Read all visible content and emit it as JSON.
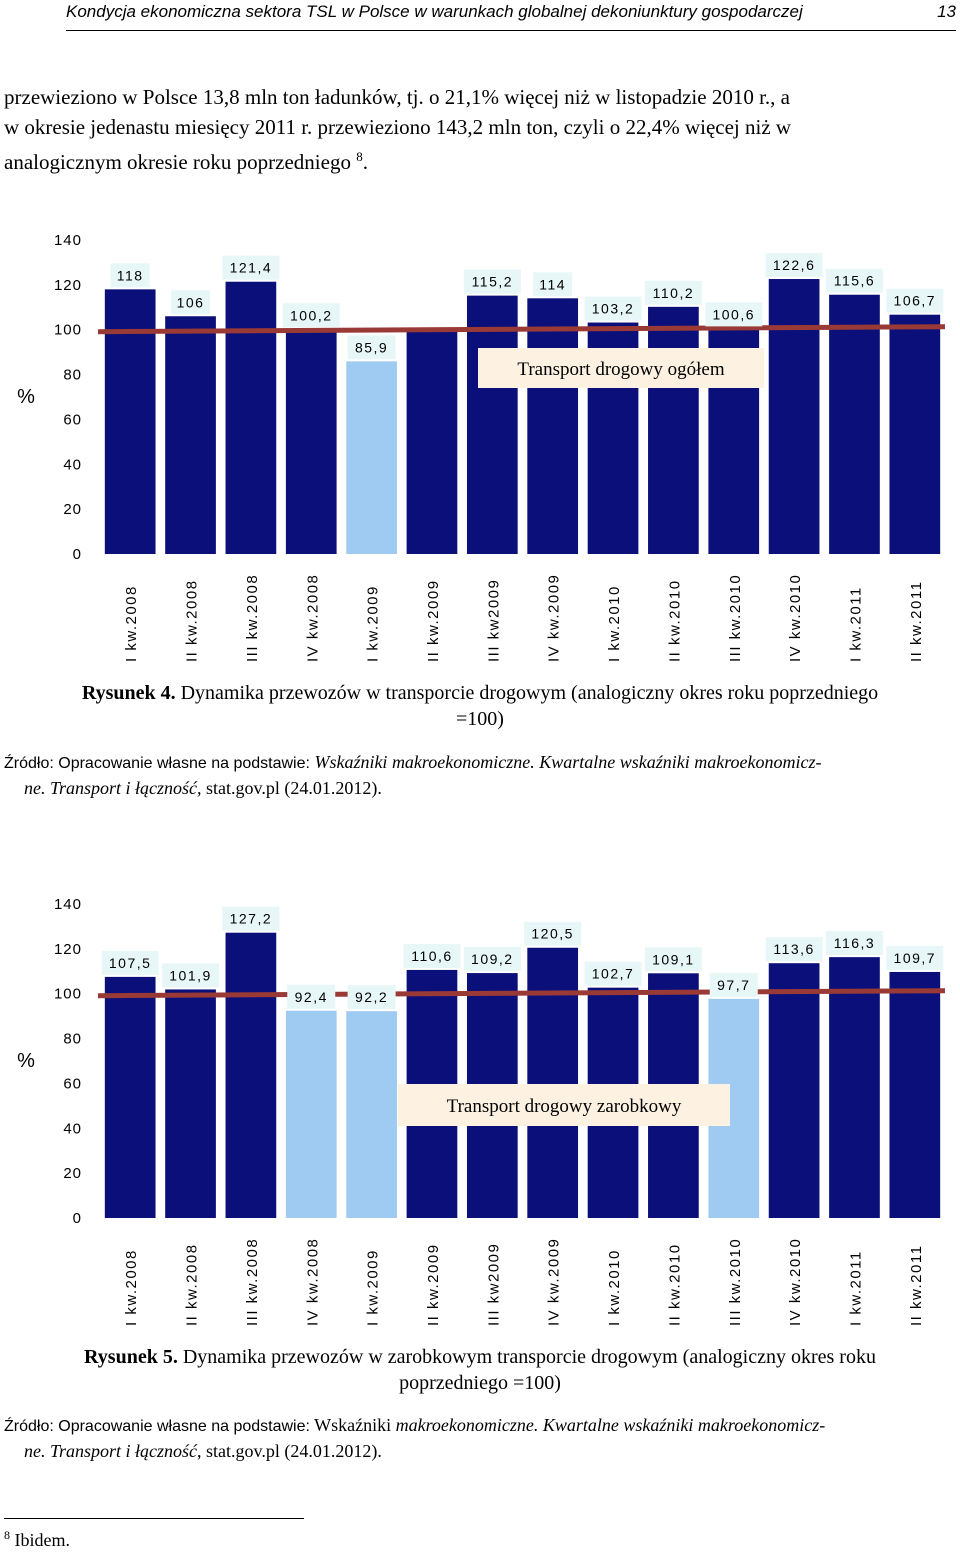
{
  "header": {
    "title": "Kondycja ekonomiczna sektora TSL w Polsce w warunkach globalnej dekoniunktury gospodarczej",
    "page_number": "13"
  },
  "intro": {
    "line1": "przewieziono w Polsce 13,8 mln ton ładunków, tj. o 21,1% więcej niż w listopadzie 2010 r., a",
    "line2": "w okresie jedenastu miesięcy 2011 r. przewieziono 143,2 mln ton, czyli o 22,4% więcej niż w",
    "line3": "analogicznym okresie roku poprzedniego",
    "footnote_ref": "8",
    "line3_end": "."
  },
  "colors": {
    "bar_dark": "#0a0f7a",
    "bar_light": "#9fcaf2",
    "label_bg": "#e7f7f7",
    "reference_line": "#9a3a36",
    "inset_bg": "#fdf2e1"
  },
  "chart_data": [
    {
      "type": "bar",
      "categories": [
        "I kw.2008",
        "II kw.2008",
        "III kw.2008",
        "IV kw.2008",
        "I kw.2009",
        "II kw.2009",
        "III kw2009",
        "IV kw.2009",
        "I kw.2010",
        "II kw.2010",
        "III kw.2010",
        "IV kw.2010",
        "I kw.2011",
        "II kw.2011"
      ],
      "values": [
        118,
        106,
        121.4,
        100.2,
        85.9,
        99.5,
        115.2,
        114,
        103.2,
        110.2,
        100.6,
        122.6,
        115.6,
        106.7
      ],
      "value_labels": [
        "118",
        "106",
        "121,4",
        "100,2",
        "85,9",
        "",
        "115,2",
        "114",
        "103,2",
        "110,2",
        "100,6",
        "122,6",
        "115,6",
        "106,7"
      ],
      "highlight": [
        false,
        false,
        false,
        false,
        true,
        false,
        false,
        false,
        false,
        false,
        false,
        false,
        false,
        false
      ],
      "reference_line": 100,
      "inset_label": "Transport drogowy ogółem",
      "ylabel": "%",
      "ylim": [
        0,
        140
      ],
      "yticks": [
        "0",
        "20",
        "40",
        "60",
        "80",
        "100",
        "120",
        "140"
      ]
    },
    {
      "type": "bar",
      "categories": [
        "I kw.2008",
        "II kw.2008",
        "III kw.2008",
        "IV kw.2008",
        "I kw.2009",
        "II kw.2009",
        "III kw2009",
        "IV kw.2009",
        "I kw.2010",
        "II kw.2010",
        "III kw.2010",
        "IV kw.2010",
        "I kw.2011",
        "II kw.2011"
      ],
      "values": [
        107.5,
        101.9,
        127.2,
        92.4,
        92.2,
        110.6,
        109.2,
        120.5,
        102.7,
        109.1,
        97.7,
        113.6,
        116.3,
        109.7
      ],
      "value_labels": [
        "107,5",
        "101,9",
        "127,2",
        "92,4",
        "92,2",
        "110,6",
        "109,2",
        "120,5",
        "102,7",
        "109,1",
        "97,7",
        "113,6",
        "116,3",
        "109,7"
      ],
      "highlight": [
        false,
        false,
        false,
        true,
        true,
        false,
        false,
        false,
        false,
        false,
        true,
        false,
        false,
        false
      ],
      "reference_line": 100,
      "inset_label": "Transport drogowy zarobkowy",
      "ylabel": "%",
      "ylim": [
        0,
        140
      ],
      "yticks": [
        "0",
        "20",
        "40",
        "60",
        "80",
        "100",
        "120",
        "140"
      ]
    }
  ],
  "figure4": {
    "label": "Rysunek 4.",
    "caption_line1": " Dynamika przewozów w transporcie drogowym (analogiczny okres roku poprzedniego",
    "caption_line2": "=100)",
    "source_prefix": "Źródło: Opracowanie własne na podstawie:",
    "source_italic1": " Wskaźniki makroekonomiczne. Kwartalne wskaźniki makroekonomicz-",
    "source_italic2": "ne. Transport i łączność,",
    "source_end": "  stat.gov.pl (24.01.2012)."
  },
  "figure5": {
    "label": "Rysunek 5.",
    "caption_line1": " Dynamika przewozów w zarobkowym  transporcie drogowym (analogiczny okres roku",
    "caption_line2": "poprzedniego =100)",
    "source_prefix": "Źródło: Opracowanie własne na podstawie:",
    "source_plain1": " Wskaźniki",
    "source_italic1": " makroekonomiczne. Kwartalne wskaźniki makroekonomicz-",
    "source_italic2": "ne. Transport i łączność",
    "source_end": ", stat.gov.pl (24.01.2012)."
  },
  "footnote": {
    "number": "8",
    "text": " Ibidem."
  }
}
